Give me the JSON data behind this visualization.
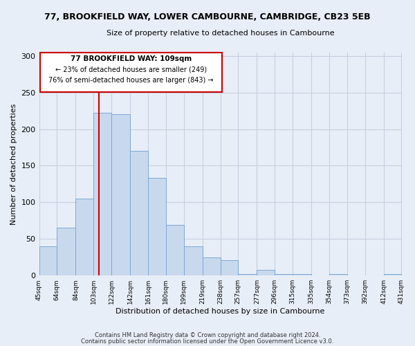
{
  "title": "77, BROOKFIELD WAY, LOWER CAMBOURNE, CAMBRIDGE, CB23 5EB",
  "subtitle": "Size of property relative to detached houses in Cambourne",
  "xlabel": "Distribution of detached houses by size in Cambourne",
  "ylabel": "Number of detached properties",
  "bar_color": "#c8d9ee",
  "bar_edge_color": "#7ca8d4",
  "vline_color": "#cc0000",
  "vline_x": 109,
  "annotation_text1": "77 BROOKFIELD WAY: 109sqm",
  "annotation_text2": "← 23% of detached houses are smaller (249)",
  "annotation_text3": "76% of semi-detached houses are larger (843) →",
  "bin_edges": [
    45,
    64,
    84,
    103,
    122,
    142,
    161,
    180,
    199,
    219,
    238,
    257,
    277,
    296,
    315,
    335,
    354,
    373,
    392,
    412,
    431
  ],
  "bin_heights": [
    40,
    65,
    105,
    222,
    220,
    170,
    133,
    69,
    40,
    25,
    21,
    2,
    8,
    2,
    2,
    0,
    2,
    0,
    0,
    2
  ],
  "xlim": [
    45,
    431
  ],
  "ylim": [
    0,
    305
  ],
  "yticks": [
    0,
    50,
    100,
    150,
    200,
    250,
    300
  ],
  "xtick_labels": [
    "45sqm",
    "64sqm",
    "84sqm",
    "103sqm",
    "122sqm",
    "142sqm",
    "161sqm",
    "180sqm",
    "199sqm",
    "219sqm",
    "238sqm",
    "257sqm",
    "277sqm",
    "296sqm",
    "315sqm",
    "335sqm",
    "354sqm",
    "373sqm",
    "392sqm",
    "412sqm",
    "431sqm"
  ],
  "footer1": "Contains HM Land Registry data © Crown copyright and database right 2024.",
  "footer2": "Contains public sector information licensed under the Open Government Licence v3.0.",
  "background_color": "#e8eef7",
  "plot_bg_color": "#e8eef7"
}
